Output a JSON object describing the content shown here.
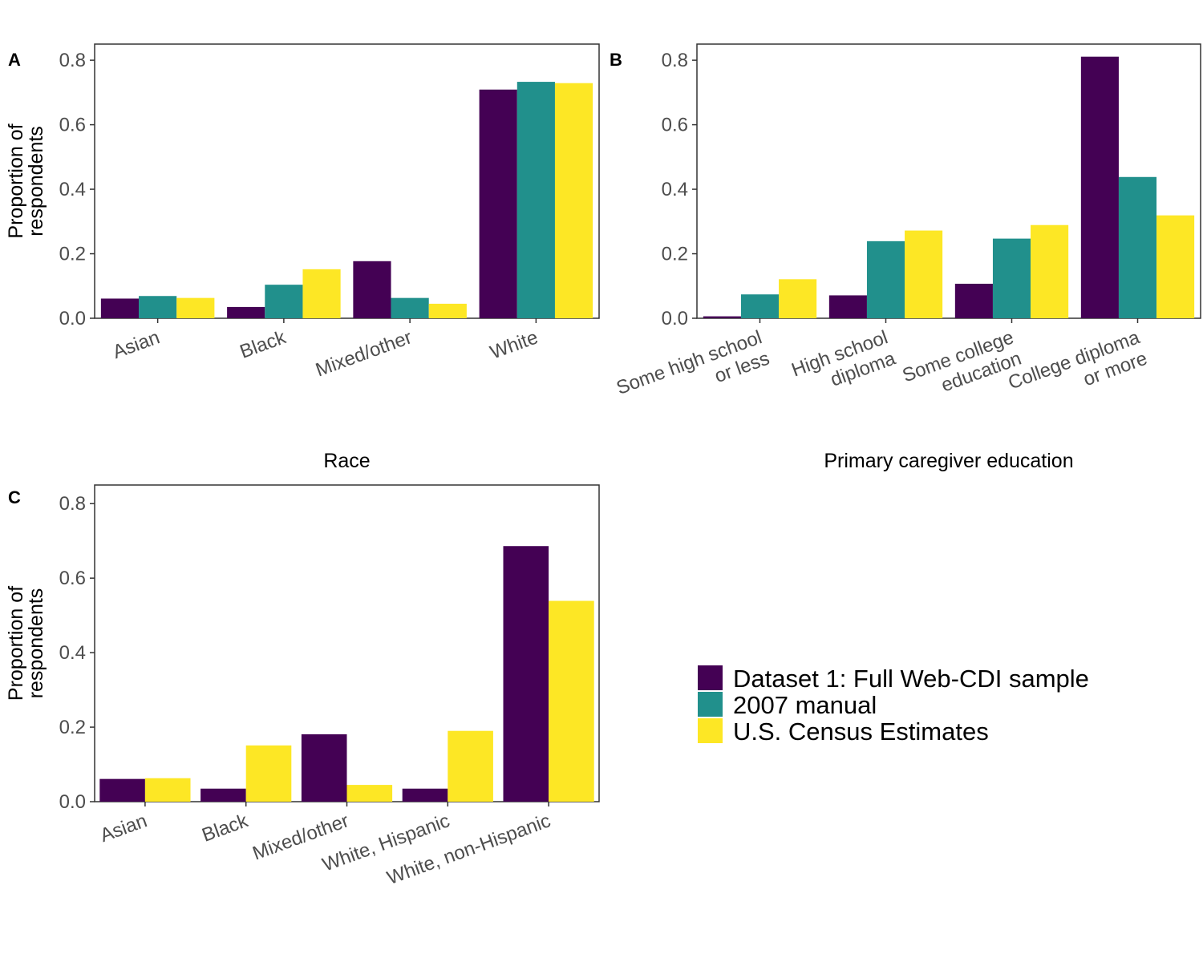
{
  "colors": {
    "dataset1": "#440154",
    "manual2007": "#21908C",
    "census": "#FDE725",
    "axis": "#333333",
    "tick_text": "#4d4d4d"
  },
  "legend": {
    "items": [
      {
        "label": "Dataset 1: Full Web-CDI sample",
        "color": "#440154"
      },
      {
        "label": "2007 manual",
        "color": "#21908C"
      },
      {
        "label": "U.S. Census Estimates",
        "color": "#FDE725"
      }
    ]
  },
  "chart_data": [
    {
      "type": "bar",
      "panel_tag": "A",
      "xlabel": "Race",
      "ylabel_lines": [
        "Proportion of",
        "respondents"
      ],
      "ylim": [
        0,
        0.85
      ],
      "yticks": [
        "0.0",
        "0.2",
        "0.4",
        "0.6",
        "0.8"
      ],
      "categories": [
        [
          "Asian"
        ],
        [
          "Black"
        ],
        [
          "Mixed/other"
        ],
        [
          "White"
        ]
      ],
      "series": [
        {
          "name": "Dataset 1: Full Web-CDI sample",
          "color": "#440154",
          "values": [
            0.061,
            0.035,
            0.177,
            0.709
          ]
        },
        {
          "name": "2007 manual",
          "color": "#21908C",
          "values": [
            0.069,
            0.104,
            0.063,
            0.733
          ]
        },
        {
          "name": "U.S. Census Estimates",
          "color": "#FDE725",
          "values": [
            0.063,
            0.152,
            0.045,
            0.729
          ]
        }
      ]
    },
    {
      "type": "bar",
      "panel_tag": "B",
      "xlabel": "Primary caregiver education",
      "ylabel_lines": [],
      "ylim": [
        0,
        0.85
      ],
      "yticks": [
        "0.0",
        "0.2",
        "0.4",
        "0.6",
        "0.8"
      ],
      "categories": [
        [
          "Some high school",
          "or less"
        ],
        [
          "High school",
          "diploma"
        ],
        [
          "Some college",
          "education"
        ],
        [
          "College diploma",
          "or more"
        ]
      ],
      "series": [
        {
          "name": "Dataset 1: Full Web-CDI sample",
          "color": "#440154",
          "values": [
            0.006,
            0.071,
            0.107,
            0.811
          ]
        },
        {
          "name": "2007 manual",
          "color": "#21908C",
          "values": [
            0.074,
            0.239,
            0.247,
            0.438
          ]
        },
        {
          "name": "U.S. Census Estimates",
          "color": "#FDE725",
          "values": [
            0.121,
            0.272,
            0.289,
            0.319
          ]
        }
      ]
    },
    {
      "type": "bar",
      "panel_tag": "C",
      "xlabel": "",
      "ylabel_lines": [
        "Proportion of",
        "respondents"
      ],
      "ylim": [
        0,
        0.85
      ],
      "yticks": [
        "0.0",
        "0.2",
        "0.4",
        "0.6",
        "0.8"
      ],
      "categories": [
        [
          "Asian"
        ],
        [
          "Black"
        ],
        [
          "Mixed/other"
        ],
        [
          "White, Hispanic"
        ],
        [
          "White, non-Hispanic"
        ]
      ],
      "series": [
        {
          "name": "Dataset 1: Full Web-CDI sample",
          "color": "#440154",
          "values": [
            0.061,
            0.035,
            0.181,
            0.035,
            0.686
          ]
        },
        {
          "name": "U.S. Census Estimates",
          "color": "#FDE725",
          "values": [
            0.063,
            0.151,
            0.045,
            0.19,
            0.539
          ]
        }
      ]
    }
  ]
}
